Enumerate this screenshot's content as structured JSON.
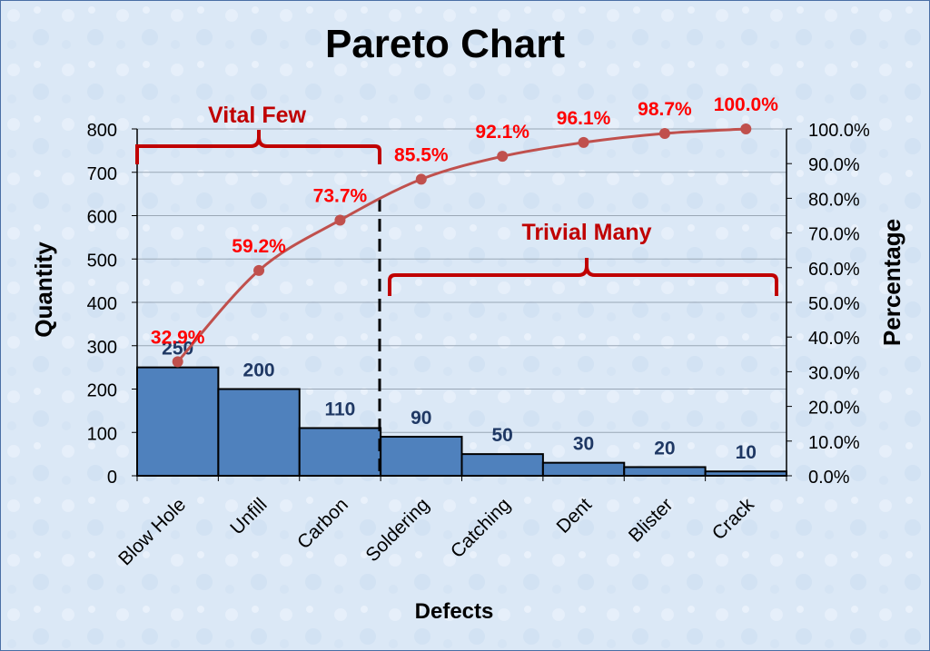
{
  "chart_data": {
    "type": "bar",
    "title": "Pareto Chart",
    "xlabel": "Defects",
    "ylabel": "Quantity",
    "y2label": "Percentage",
    "categories": [
      "Blow Hole",
      "Unfill",
      "Carbon",
      "Soldering",
      "Catching",
      "Dent",
      "Blister",
      "Crack"
    ],
    "series": [
      {
        "type": "bar",
        "values": [
          250,
          200,
          110,
          90,
          50,
          30,
          20,
          10
        ]
      },
      {
        "type": "line",
        "axis": "right",
        "values": [
          32.9,
          59.2,
          73.7,
          85.5,
          92.1,
          96.1,
          98.7,
          100.0
        ]
      }
    ],
    "bar_labels": [
      "250",
      "200",
      "110",
      "90",
      "50",
      "30",
      "20",
      "10"
    ],
    "percent_labels": [
      "32.9%",
      "59.2%",
      "73.7%",
      "85.5%",
      "92.1%",
      "96.1%",
      "98.7%",
      "100.0%"
    ],
    "ylim": [
      0,
      800
    ],
    "yticks": [
      "0",
      "100",
      "200",
      "300",
      "400",
      "500",
      "600",
      "700",
      "800"
    ],
    "y2lim": [
      0,
      100
    ],
    "y2ticks": [
      "0.0%",
      "10.0%",
      "20.0%",
      "30.0%",
      "40.0%",
      "50.0%",
      "60.0%",
      "70.0%",
      "80.0%",
      "90.0%",
      "100.0%"
    ],
    "grid": true,
    "annotations": {
      "vital_few": "Vital Few",
      "trivial_many": "Trivial Many"
    },
    "colors": {
      "bar": "#4f81bd",
      "bar_border": "#000000",
      "line": "#c0504d",
      "percent_label": "#ff0000",
      "value_label": "#1f3864",
      "annotation": "#c00000",
      "background": "#dbe8f6"
    }
  }
}
